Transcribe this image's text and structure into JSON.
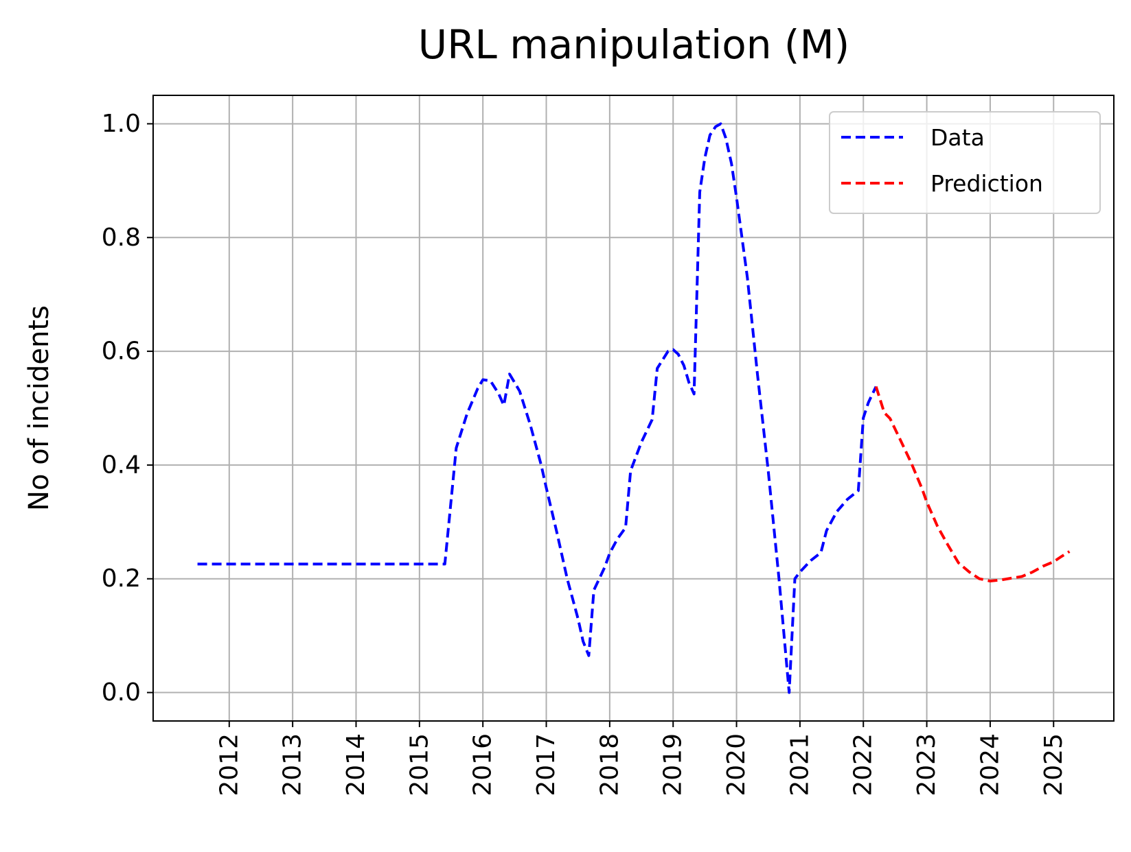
{
  "chart_data": {
    "type": "line",
    "title": "URL manipulation (M)",
    "xlabel": "",
    "ylabel": "No of incidents",
    "xlim": [
      2010.8,
      2025.95
    ],
    "ylim": [
      -0.05,
      1.05
    ],
    "x_ticks": [
      2012,
      2013,
      2014,
      2015,
      2016,
      2017,
      2018,
      2019,
      2020,
      2021,
      2022,
      2023,
      2024,
      2025
    ],
    "x_tick_labels": [
      "2012",
      "2013",
      "2014",
      "2015",
      "2016",
      "2017",
      "2018",
      "2019",
      "2020",
      "2021",
      "2022",
      "2023",
      "2024",
      "2025"
    ],
    "y_ticks": [
      0.0,
      0.2,
      0.4,
      0.6,
      0.8,
      1.0
    ],
    "y_tick_labels": [
      "0.0",
      "0.2",
      "0.4",
      "0.6",
      "0.8",
      "1.0"
    ],
    "grid": true,
    "legend": "top-right",
    "series": [
      {
        "name": "Data",
        "color": "#0000ff",
        "points": [
          [
            2011.5,
            0.226
          ],
          [
            2015.4,
            0.226
          ],
          [
            2015.58,
            0.43
          ],
          [
            2015.75,
            0.49
          ],
          [
            2015.92,
            0.535
          ],
          [
            2016.0,
            0.55
          ],
          [
            2016.12,
            0.548
          ],
          [
            2016.25,
            0.525
          ],
          [
            2016.33,
            0.505
          ],
          [
            2016.42,
            0.56
          ],
          [
            2016.5,
            0.545
          ],
          [
            2016.58,
            0.53
          ],
          [
            2016.75,
            0.47
          ],
          [
            2016.92,
            0.4
          ],
          [
            2017.0,
            0.36
          ],
          [
            2017.17,
            0.28
          ],
          [
            2017.33,
            0.2
          ],
          [
            2017.5,
            0.13
          ],
          [
            2017.58,
            0.09
          ],
          [
            2017.67,
            0.065
          ],
          [
            2017.75,
            0.18
          ],
          [
            2017.92,
            0.22
          ],
          [
            2018.0,
            0.245
          ],
          [
            2018.12,
            0.27
          ],
          [
            2018.25,
            0.29
          ],
          [
            2018.33,
            0.39
          ],
          [
            2018.5,
            0.44
          ],
          [
            2018.67,
            0.48
          ],
          [
            2018.75,
            0.57
          ],
          [
            2018.92,
            0.6
          ],
          [
            2019.0,
            0.603
          ],
          [
            2019.08,
            0.595
          ],
          [
            2019.17,
            0.575
          ],
          [
            2019.25,
            0.545
          ],
          [
            2019.33,
            0.525
          ],
          [
            2019.42,
            0.88
          ],
          [
            2019.5,
            0.94
          ],
          [
            2019.58,
            0.98
          ],
          [
            2019.67,
            0.995
          ],
          [
            2019.75,
            1.0
          ],
          [
            2019.83,
            0.975
          ],
          [
            2019.92,
            0.93
          ],
          [
            2020.0,
            0.87
          ],
          [
            2020.17,
            0.73
          ],
          [
            2020.33,
            0.56
          ],
          [
            2020.5,
            0.39
          ],
          [
            2020.67,
            0.2
          ],
          [
            2020.83,
            0.0
          ],
          [
            2020.92,
            0.2
          ],
          [
            2021.0,
            0.212
          ],
          [
            2021.17,
            0.232
          ],
          [
            2021.33,
            0.246
          ],
          [
            2021.42,
            0.285
          ],
          [
            2021.58,
            0.318
          ],
          [
            2021.75,
            0.34
          ],
          [
            2021.92,
            0.355
          ],
          [
            2022.0,
            0.483
          ],
          [
            2022.08,
            0.51
          ],
          [
            2022.2,
            0.538
          ]
        ]
      },
      {
        "name": "Prediction",
        "color": "#ff0000",
        "points": [
          [
            2022.2,
            0.538
          ],
          [
            2022.33,
            0.492
          ],
          [
            2022.42,
            0.482
          ],
          [
            2022.58,
            0.445
          ],
          [
            2022.75,
            0.405
          ],
          [
            2022.92,
            0.36
          ],
          [
            2023.0,
            0.335
          ],
          [
            2023.17,
            0.292
          ],
          [
            2023.33,
            0.26
          ],
          [
            2023.5,
            0.228
          ],
          [
            2023.67,
            0.212
          ],
          [
            2023.83,
            0.2
          ],
          [
            2024.0,
            0.196
          ],
          [
            2024.17,
            0.198
          ],
          [
            2024.33,
            0.201
          ],
          [
            2024.5,
            0.204
          ],
          [
            2024.67,
            0.212
          ],
          [
            2024.83,
            0.222
          ],
          [
            2025.0,
            0.23
          ],
          [
            2025.12,
            0.239
          ],
          [
            2025.25,
            0.248
          ]
        ]
      }
    ]
  }
}
